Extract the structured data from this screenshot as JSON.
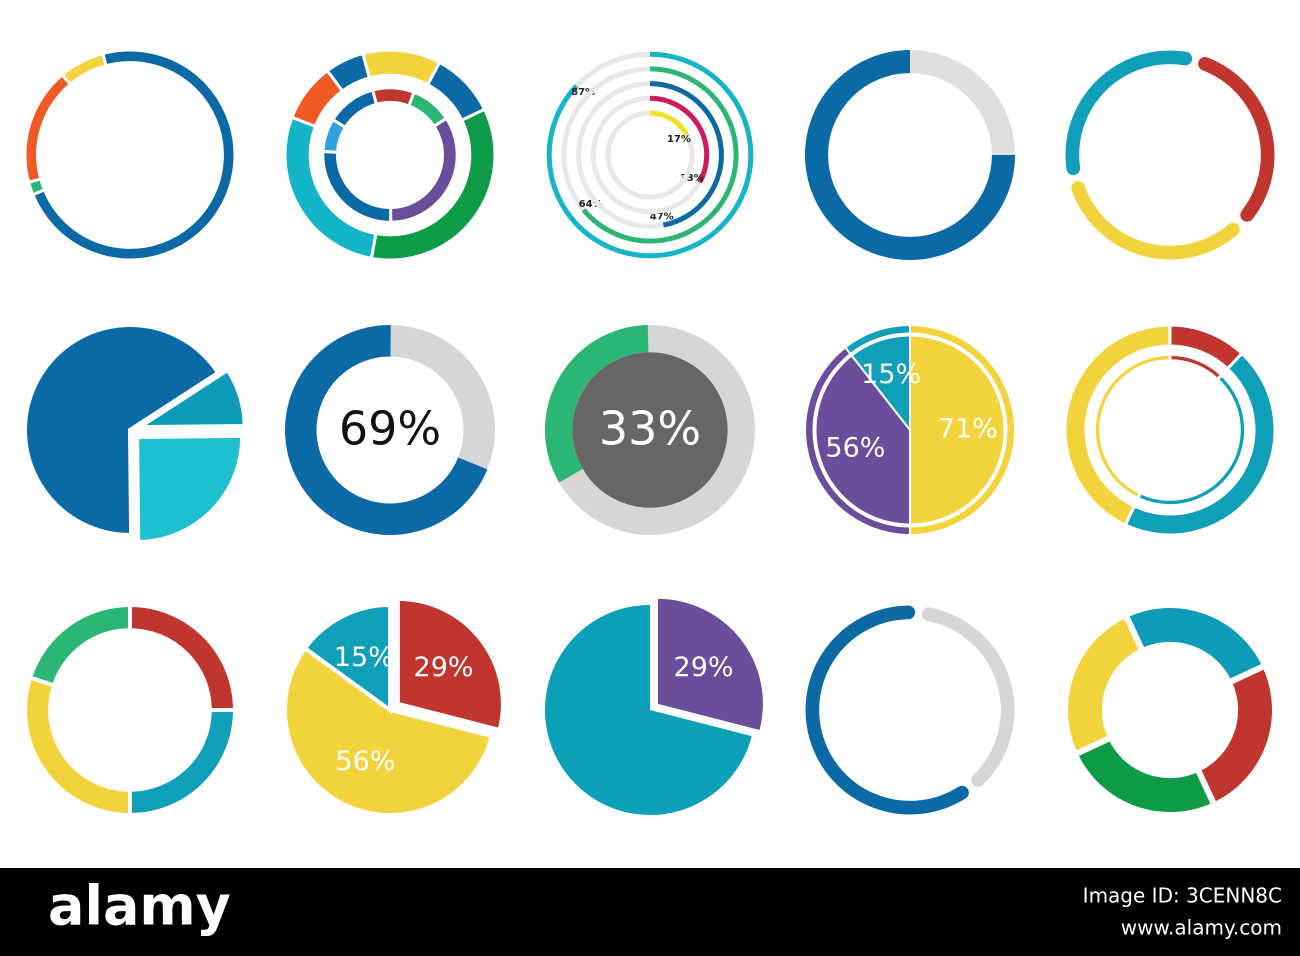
{
  "chart_data": [
    {
      "type": "donut",
      "start_angle": -15,
      "values": [
        73,
        2,
        18,
        7
      ],
      "colors": [
        "#0b6aa6",
        "#2bb673",
        "#ef5a24",
        "#f2d33c"
      ]
    },
    {
      "type": "double_donut",
      "start_angle": -15,
      "series": [
        {
          "values": [
            12,
            10,
            35,
            28,
            9,
            6
          ],
          "colors": [
            "#f2d33c",
            "#0b6aa6",
            "#0e9b48",
            "#14b5c9",
            "#ef5a24",
            "#0b6aa6"
          ]
        },
        {
          "values": [
            10,
            10,
            34,
            26,
            8,
            12
          ],
          "colors": [
            "#c0352e",
            "#2bb673",
            "#6a4e9c",
            "#0b6aa6",
            "#2ea3dd",
            "#0b6aa6"
          ]
        }
      ]
    },
    {
      "type": "radial",
      "start_angle": 0,
      "values": [
        87,
        64,
        47,
        33,
        17
      ],
      "value_labels": [
        "87%",
        "64%",
        "47%",
        "33%",
        "17%"
      ],
      "colors": [
        "#14b5c9",
        "#2bb673",
        "#0b6aa6",
        "#d0195a",
        "#f5e11e"
      ],
      "track_color": "#e8e8e8"
    },
    {
      "type": "donut",
      "start_angle": 0,
      "values": [
        25,
        75
      ],
      "colors": [
        "#dedfe0",
        "#0b6aa6"
      ]
    },
    {
      "type": "donut",
      "start_angle": 15,
      "values": [
        33,
        34,
        33
      ],
      "colors": [
        "#c0352e",
        "#f2d33c",
        "#109fb8"
      ]
    },
    {
      "type": "pie",
      "start_angle": 57,
      "values": [
        9,
        25,
        66
      ],
      "colors": [
        "#0d9bb8",
        "#1ec0d0",
        "#0b6aa6"
      ]
    },
    {
      "type": "progress",
      "start_angle": 112,
      "values": [
        69
      ],
      "value_labels": [
        "69%"
      ],
      "color": "#0b6aa6",
      "track_color": "#d4d6d8",
      "label_color": "#111111"
    },
    {
      "type": "progress",
      "start_angle": 240,
      "values": [
        33
      ],
      "value_labels": [
        "33%"
      ],
      "color": "#2bb673",
      "track_color": "#d4d6d8",
      "center_color": "#666666",
      "label_color": "#ffffff"
    },
    {
      "type": "pie",
      "start_angle": 0,
      "values": [
        71,
        56,
        15
      ],
      "value_labels": [
        "71%",
        "56%",
        "15%"
      ],
      "colors": [
        "#f2d33c",
        "#6a4e9c",
        "#109fb8"
      ]
    },
    {
      "type": "donut",
      "start_angle": 0,
      "values": [
        12,
        45,
        43
      ],
      "colors": [
        "#c0352e",
        "#109fb8",
        "#f2d33c"
      ]
    },
    {
      "type": "donut",
      "start_angle": 0,
      "values": [
        25,
        25,
        30,
        20
      ],
      "colors": [
        "#c0352e",
        "#109fb8",
        "#f2d33c",
        "#2bb673"
      ]
    },
    {
      "type": "pie",
      "start_angle": 0,
      "values": [
        29,
        56,
        15
      ],
      "value_labels": [
        "29%",
        "56%",
        "15%"
      ],
      "colors": [
        "#c0352e",
        "#f2d33c",
        "#109fb8"
      ]
    },
    {
      "type": "pie",
      "start_angle": 0,
      "values": [
        29,
        71
      ],
      "value_labels": [
        "29%",
        null
      ],
      "colors": [
        "#6a4e9c",
        "#0aa0b8"
      ]
    },
    {
      "type": "donut",
      "start_angle": 5,
      "values": [
        38,
        62
      ],
      "colors": [
        "#d4d6d8",
        "#0b6aa6"
      ]
    },
    {
      "type": "donut",
      "start_angle": -25,
      "values": [
        25,
        25,
        25,
        25
      ],
      "colors": [
        "#0d9bb8",
        "#c0352e",
        "#0e9b48",
        "#f2d33c"
      ]
    }
  ],
  "footer": {
    "logo": "alamy",
    "image_id": "Image ID: 3CENN8C",
    "url": "www.alamy.com"
  }
}
